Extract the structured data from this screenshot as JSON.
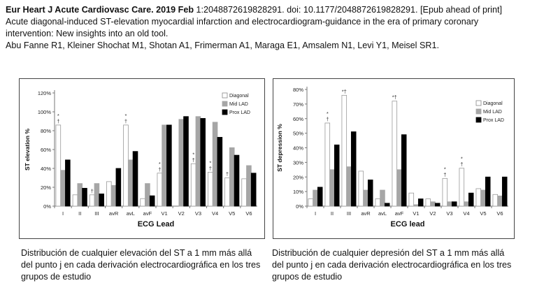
{
  "header": {
    "citation_bold": "Eur Heart J Acute Cardiovasc Care. 2019 Feb",
    "citation_rest": " 1:2048872619828291. doi: 10.1177/2048872619828291. [Epub ahead of print]",
    "title_line1": "Acute diagonal-induced ST-elevation myocardial infarction and electrocardiogram-guidance in the era of primary coronary",
    "title_line2": "intervention: New insights into an old tool.",
    "authors": "Abu Fanne R1, Kleiner Shochat M1, Shotan A1, Frimerman A1, Maraga E1, Amsalem N1, Levi Y1, Meisel SR1."
  },
  "captions": {
    "left": "Distribución de cualquier elevación del ST a 1 mm más allá del punto j   en cada derivación electrocardiográfica en los tres grupos de estudio",
    "right": "Distribución de cualquier  depresión del ST a 1 mm más allá del punto j en cada derivación electrocardiográfica en los tres grupos de estudio"
  },
  "chart_data": [
    {
      "type": "bar",
      "xlabel": "ECG Lead",
      "ylabel": "ST elevation %",
      "ylim": [
        0,
        120
      ],
      "yticks": [
        "0%",
        "20%",
        "40%",
        "60%",
        "80%",
        "100%",
        "120%"
      ],
      "yticks_values": [
        0,
        20,
        40,
        60,
        80,
        100,
        120
      ],
      "legend_position": "top-right",
      "categories": [
        "I",
        "II",
        "III",
        "avR",
        "avL",
        "avF",
        "V1",
        "V2",
        "V3",
        "V4",
        "V5",
        "V6"
      ],
      "series": [
        {
          "name": "Diagonal",
          "color": "#ffffff",
          "values": [
            86,
            12,
            12,
            26,
            86,
            8,
            35,
            0,
            45,
            36,
            30,
            29
          ]
        },
        {
          "name": "Mid LAD",
          "color": "#a6a6a6",
          "values": [
            38,
            24,
            24,
            22,
            49,
            24,
            86,
            92,
            95,
            89,
            62,
            43
          ]
        },
        {
          "name": "Prox LAD",
          "color": "#000000",
          "values": [
            49,
            19,
            13,
            40,
            58,
            11,
            86,
            95,
            93,
            73,
            54,
            35
          ]
        }
      ],
      "annotations": [
        {
          "category": "I",
          "text": "*"
        },
        {
          "category": "I",
          "text": "†"
        },
        {
          "category": "III",
          "text": "†"
        },
        {
          "category": "avL",
          "text": "*"
        },
        {
          "category": "avL",
          "text": "†"
        },
        {
          "category": "V1",
          "text": "*"
        },
        {
          "category": "V1",
          "text": "†"
        },
        {
          "category": "V3",
          "text": "*"
        },
        {
          "category": "V3",
          "text": "†"
        },
        {
          "category": "V4",
          "text": "*"
        },
        {
          "category": "V4",
          "text": "†"
        },
        {
          "category": "V5",
          "text": "†"
        }
      ]
    },
    {
      "type": "bar",
      "xlabel": "ECG lead",
      "ylabel": "ST depression %",
      "ylim": [
        0,
        80
      ],
      "yticks": [
        "0%",
        "10%",
        "20%",
        "30%",
        "40%",
        "50%",
        "60%",
        "70%",
        "80%"
      ],
      "yticks_values": [
        0,
        10,
        20,
        30,
        40,
        50,
        60,
        70,
        80
      ],
      "legend_position": "top-right",
      "categories": [
        "I",
        "II",
        "III",
        "avR",
        "avL",
        "avF",
        "V1",
        "V2",
        "V3",
        "V4",
        "V5",
        "V6"
      ],
      "series": [
        {
          "name": "Diagonal",
          "color": "#ffffff",
          "values": [
            5,
            57,
            76,
            24,
            5,
            72,
            9,
            5,
            19,
            26,
            12,
            8
          ]
        },
        {
          "name": "Mid LAD",
          "color": "#a6a6a6",
          "values": [
            11,
            25,
            27,
            11,
            11,
            25,
            1,
            3,
            3,
            3,
            11,
            7
          ]
        },
        {
          "name": "Prox LAD",
          "color": "#000000",
          "values": [
            13,
            42,
            51,
            18,
            2,
            49,
            5,
            2,
            3,
            9,
            20,
            20
          ]
        }
      ],
      "annotations": [
        {
          "category": "II",
          "text": "*"
        },
        {
          "category": "II",
          "text": "†"
        },
        {
          "category": "III",
          "text": "*†"
        },
        {
          "category": "avF",
          "text": "*†"
        },
        {
          "category": "V3",
          "text": "*"
        },
        {
          "category": "V3",
          "text": "†"
        },
        {
          "category": "V4",
          "text": "*"
        },
        {
          "category": "V4",
          "text": "†"
        }
      ]
    }
  ]
}
